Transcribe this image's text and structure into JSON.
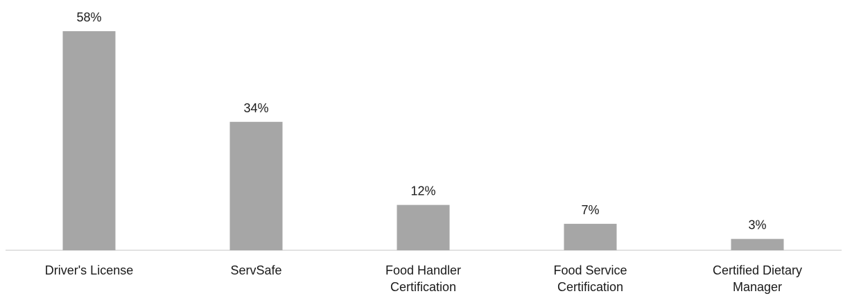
{
  "chart_data": {
    "type": "bar",
    "categories": [
      [
        "Driver's License"
      ],
      [
        "ServSafe"
      ],
      [
        "Food Handler",
        "Certification"
      ],
      [
        "Food Service",
        "Certification"
      ],
      [
        "Certified Dietary",
        "Manager"
      ]
    ],
    "values": [
      58,
      34,
      12,
      7,
      3
    ],
    "data_labels": [
      "58%",
      "34%",
      "12%",
      "7%",
      "3%"
    ],
    "bar_color": "#a6a6a6",
    "axis_color": "#d9d9d9",
    "grid": false,
    "legend": "none"
  }
}
